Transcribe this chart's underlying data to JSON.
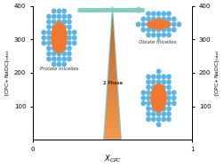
{
  "xlabel": "X_{CPC}",
  "ylabel_left": "[CPC+NaDC]_{total}",
  "ylabel_right": "[CPC+NaDC]_{total}",
  "xlim": [
    0,
    1
  ],
  "ylim": [
    0,
    400
  ],
  "yticks": [
    100,
    200,
    300,
    400
  ],
  "xticks": [
    0,
    1
  ],
  "bg_color": "#ffffff",
  "phase_label": "2 Phase",
  "arrow_color": "#7ecfc0",
  "prolate_label": "Prolate micelles",
  "oblate_label": "Oblate micelles",
  "blue_color": "#5ab4e8",
  "orange_color": "#f07830"
}
